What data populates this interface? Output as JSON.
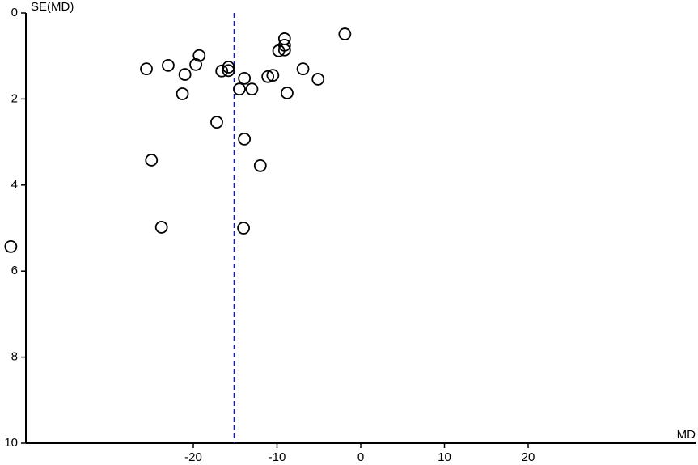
{
  "chart_data": {
    "type": "scatter",
    "x_label": "MD",
    "y_label": "SE(MD)",
    "x": [
      -41.8,
      -25.6,
      -25.0,
      -23.8,
      -23.0,
      -21.3,
      -21.0,
      -19.7,
      -19.3,
      -17.2,
      -16.6,
      -15.8,
      -15.8,
      -14.5,
      -13.9,
      -13.9,
      -14.0,
      -13.0,
      -12.0,
      -11.1,
      -10.5,
      -9.8,
      -9.1,
      -9.1,
      -9.1,
      -8.8,
      -6.9,
      -5.1,
      -1.9
    ],
    "values": [
      5.43,
      1.3,
      3.42,
      4.98,
      1.22,
      1.88,
      1.43,
      1.2,
      0.99,
      2.54,
      1.35,
      1.34,
      1.26,
      1.77,
      1.52,
      2.93,
      5.0,
      1.77,
      3.55,
      1.48,
      1.45,
      0.88,
      0.6,
      0.75,
      0.86,
      1.86,
      1.3,
      1.54,
      0.49
    ],
    "color": "#000000",
    "xlim": [
      -40,
      40
    ],
    "ylim": [
      10,
      0
    ],
    "xticks": [
      -20,
      -10,
      0,
      10,
      20
    ],
    "yticks": [
      0,
      2,
      4,
      6,
      8,
      10
    ],
    "reference_line": {
      "x": -15.1,
      "color": "#1a1a9c",
      "dashed": true
    }
  }
}
